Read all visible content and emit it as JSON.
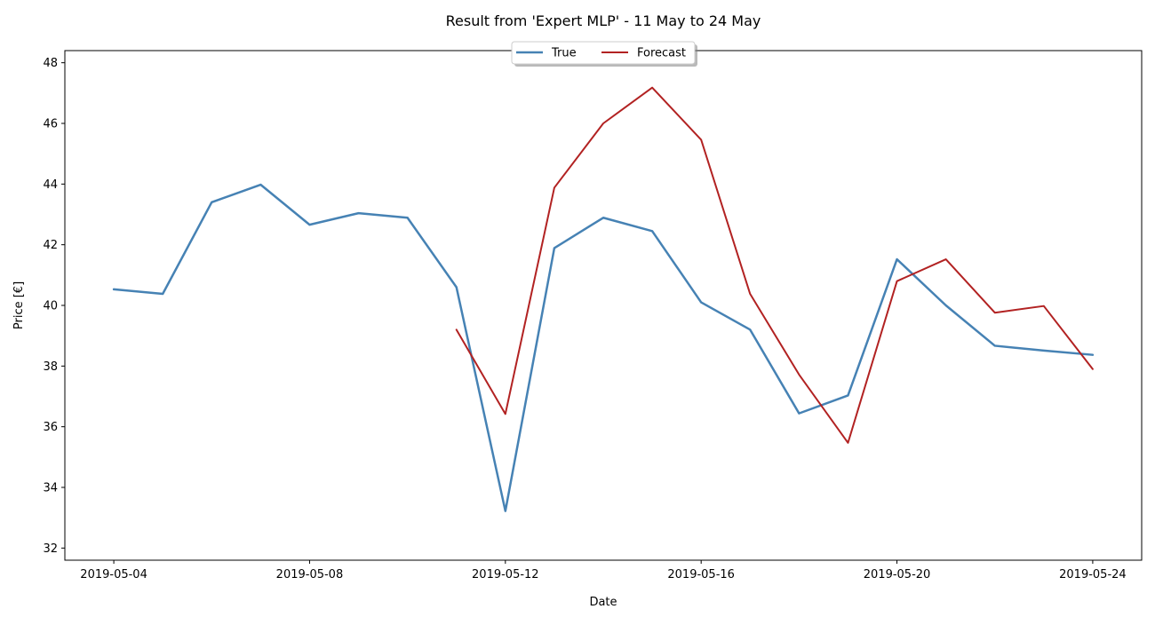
{
  "chart_data": {
    "type": "line",
    "title": "Result from 'Expert MLP' - 11 May to 24 May",
    "xlabel": "Date",
    "ylabel": "Price [€]",
    "xlim": [
      "2019-05-03",
      "2019-05-25"
    ],
    "ylim": [
      31.6,
      48.4
    ],
    "x_ticks": [
      "2019-05-04",
      "2019-05-08",
      "2019-05-12",
      "2019-05-16",
      "2019-05-20",
      "2019-05-24"
    ],
    "y_ticks": [
      32,
      34,
      36,
      38,
      40,
      42,
      44,
      46,
      48
    ],
    "grid": false,
    "legend": {
      "placement": "top-center",
      "entries": [
        "True",
        "Forecast"
      ]
    },
    "series": [
      {
        "name": "True",
        "color": "#4682b4",
        "x": [
          "2019-05-04",
          "2019-05-05",
          "2019-05-06",
          "2019-05-07",
          "2019-05-08",
          "2019-05-09",
          "2019-05-10",
          "2019-05-11",
          "2019-05-12",
          "2019-05-13",
          "2019-05-14",
          "2019-05-15",
          "2019-05-16",
          "2019-05-17",
          "2019-05-18",
          "2019-05-19",
          "2019-05-20",
          "2019-05-21",
          "2019-05-22",
          "2019-05-23",
          "2019-05-24"
        ],
        "values": [
          40.53,
          40.38,
          43.4,
          43.98,
          42.66,
          43.04,
          42.89,
          40.6,
          33.22,
          41.89,
          42.89,
          42.45,
          40.1,
          39.2,
          36.44,
          37.03,
          41.52,
          40.0,
          38.67,
          38.51,
          38.37
        ]
      },
      {
        "name": "Forecast",
        "color": "#b22222",
        "x": [
          "2019-05-11",
          "2019-05-12",
          "2019-05-13",
          "2019-05-14",
          "2019-05-15",
          "2019-05-16",
          "2019-05-17",
          "2019-05-18",
          "2019-05-19",
          "2019-05-20",
          "2019-05-21",
          "2019-05-22",
          "2019-05-23",
          "2019-05-24"
        ],
        "values": [
          39.2,
          36.42,
          43.88,
          46.0,
          47.18,
          45.46,
          40.38,
          37.72,
          35.47,
          40.8,
          41.52,
          39.76,
          39.98,
          37.9
        ]
      }
    ]
  }
}
